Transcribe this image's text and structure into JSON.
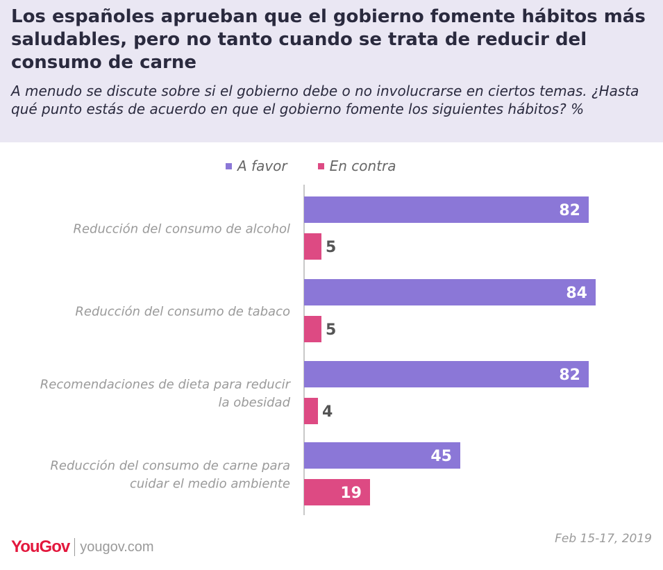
{
  "header": {
    "title": "Los españoles aprueban que el gobierno fomente hábitos más saludables, pero no tanto cuando se trata de reducir del consumo de carne",
    "subtitle": "A menudo se discute sobre si el gobierno debe o no involucrarse en ciertos temas. ¿Hasta qué punto estás de acuerdo en que el gobierno fomente los siguientes hábitos? %"
  },
  "colors": {
    "header_bg": "#eae7f3",
    "favor": "#8b77d7",
    "contra": "#dd4a83",
    "axis": "#c8c8c8",
    "category_text": "#9a9a9a",
    "value_outside": "#555555",
    "value_inside": "#ffffff"
  },
  "footer": {
    "logo": "YouGov",
    "url": "yougov.com",
    "date": "Feb 15-17, 2019"
  },
  "chart_data": {
    "type": "bar",
    "orientation": "horizontal",
    "title": "",
    "categories": [
      [
        "Reducción del consumo de alcohol"
      ],
      [
        "Reducción del consumo de tabaco"
      ],
      [
        "Recomendaciones de dieta para reducir",
        "la obesidad"
      ],
      [
        "Reducción del consumo de carne para",
        "cuidar el medio ambiente"
      ]
    ],
    "series": [
      {
        "name": "A favor",
        "values": [
          82,
          84,
          82,
          45
        ]
      },
      {
        "name": "En contra",
        "values": [
          5,
          5,
          4,
          19
        ]
      }
    ],
    "xlim": [
      0,
      100
    ],
    "legend_position": "top",
    "grid": false
  }
}
